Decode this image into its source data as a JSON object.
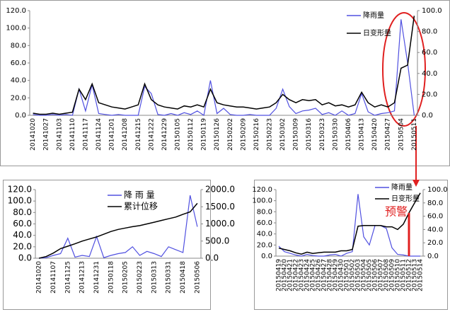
{
  "chart_data": [
    {
      "type": "line",
      "categories": [
        "20141020",
        null,
        "20141027",
        null,
        "20141103",
        null,
        "20141110",
        null,
        "20141117",
        null,
        "20141124",
        null,
        "20141201",
        null,
        "20141208",
        null,
        "20141215",
        null,
        "20141222",
        null,
        "20141229",
        null,
        "20150105",
        null,
        "20150112",
        null,
        "20150119",
        null,
        "20150126",
        null,
        "20150202",
        null,
        "20150209",
        null,
        "20150216",
        null,
        "20150223",
        null,
        "20150302",
        null,
        "20150309",
        null,
        "20150316",
        null,
        "20150323",
        null,
        "20150330",
        null,
        "20150406",
        null,
        "20150413",
        null,
        "20150420",
        null,
        "20150427",
        null,
        "20150504",
        null,
        "20150511"
      ],
      "series": [
        {
          "name": "降雨量",
          "color": "#5050e0",
          "values": [
            1,
            0,
            0,
            1,
            0,
            1,
            0,
            30,
            5,
            35,
            2,
            1,
            0,
            1,
            0,
            0,
            0,
            33,
            25,
            1,
            0,
            2,
            0,
            3,
            1,
            5,
            0,
            40,
            2,
            8,
            1,
            0,
            0,
            1,
            0,
            0,
            0,
            8,
            30,
            10,
            2,
            5,
            6,
            8,
            1,
            3,
            0,
            5,
            0,
            2,
            25,
            4,
            0,
            2,
            3,
            5,
            110,
            60,
            0
          ]
        },
        {
          "name": "日变形量",
          "color": "#000000",
          "axis": "y2",
          "values": [
            2,
            1,
            1,
            2,
            1,
            2,
            3,
            25,
            15,
            30,
            12,
            10,
            8,
            7,
            6,
            8,
            10,
            30,
            15,
            10,
            8,
            7,
            6,
            9,
            8,
            10,
            8,
            25,
            12,
            10,
            9,
            8,
            8,
            7,
            6,
            7,
            8,
            12,
            20,
            15,
            12,
            15,
            14,
            15,
            10,
            12,
            9,
            10,
            8,
            10,
            22,
            12,
            8,
            10,
            8,
            12,
            45,
            48,
            95
          ]
        }
      ],
      "ylim": [
        0,
        120
      ],
      "yticks": [
        {
          "value": 0,
          "label": "0.0"
        },
        {
          "value": 20,
          "label": "20.0"
        },
        {
          "value": 40,
          "label": "40.0"
        },
        {
          "value": 60,
          "label": "60.0"
        },
        {
          "value": 80,
          "label": "80.0"
        },
        {
          "value": 100,
          "label": "100.0"
        },
        {
          "value": 120,
          "label": "120.0"
        }
      ],
      "y2lim": [
        0,
        100
      ],
      "y2ticks": [
        {
          "value": 0,
          "label": "0.0"
        },
        {
          "value": 20,
          "label": "20.0"
        },
        {
          "value": 40,
          "label": "40.0"
        },
        {
          "value": 60,
          "label": "60.0"
        },
        {
          "value": 80,
          "label": "80.0"
        },
        {
          "value": 100,
          "label": "100.0"
        }
      ]
    },
    {
      "type": "line",
      "categories": [
        "20141020",
        null,
        "20141107",
        null,
        "20141125",
        null,
        "20141213",
        null,
        "20141231",
        null,
        "20150118",
        null,
        "20150205",
        null,
        "20150223",
        null,
        "20150313",
        null,
        "20150331",
        null,
        "20150418",
        null,
        "20150506"
      ],
      "series": [
        {
          "name": "降 雨 量",
          "color": "#5050e0",
          "values": [
            0,
            1,
            5,
            8,
            35,
            2,
            5,
            3,
            38,
            1,
            5,
            8,
            10,
            20,
            5,
            12,
            8,
            3,
            20,
            15,
            10,
            110,
            55
          ]
        },
        {
          "name": "累计位移",
          "color": "#000000",
          "axis": "y2",
          "values": [
            0,
            50,
            150,
            280,
            350,
            420,
            500,
            560,
            620,
            700,
            780,
            840,
            880,
            920,
            950,
            1000,
            1050,
            1100,
            1150,
            1200,
            1280,
            1350,
            1600
          ]
        }
      ],
      "ylim": [
        0,
        120
      ],
      "yticks": [
        {
          "value": 0,
          "label": "0.0"
        },
        {
          "value": 20,
          "label": "20.0"
        },
        {
          "value": 40,
          "label": "40.0"
        },
        {
          "value": 60,
          "label": "60.0"
        },
        {
          "value": 80,
          "label": "80.0"
        },
        {
          "value": 100,
          "label": "100.0"
        },
        {
          "value": 120,
          "label": "120.0"
        }
      ],
      "y2lim": [
        0,
        2000
      ],
      "y2ticks": [
        {
          "value": 0,
          "label": "0.0"
        },
        {
          "value": 500,
          "label": "500.0"
        },
        {
          "value": 1000,
          "label": "1000.0"
        },
        {
          "value": 1500,
          "label": "1500.0"
        },
        {
          "value": 2000,
          "label": "2000.0"
        }
      ]
    },
    {
      "type": "line",
      "categories": [
        "20150419",
        "20150420",
        "20150421",
        "20150422",
        "20150423",
        "20150424",
        "20150425",
        "20150426",
        "20150427",
        "20150428",
        "20150429",
        "20150430",
        "20150501",
        "20150502",
        "20150503",
        "20150504",
        "20150505",
        "20150506",
        "20150507",
        "20150508",
        "20150509",
        "20150510",
        "20150511",
        "20150512",
        "20150513",
        "20150514"
      ],
      "series": [
        {
          "name": "降雨量",
          "color": "#5050e0",
          "values": [
            18,
            8,
            5,
            2,
            0,
            3,
            1,
            0,
            0,
            2,
            3,
            0,
            5,
            8,
            112,
            35,
            20,
            55,
            55,
            50,
            15,
            3,
            2,
            0,
            0,
            0
          ]
        },
        {
          "name": "日变形量",
          "color": "#000000",
          "axis": "y2",
          "values": [
            12,
            10,
            8,
            5,
            3,
            6,
            4,
            5,
            6,
            6,
            6,
            8,
            8,
            10,
            45,
            46,
            46,
            46,
            46,
            44,
            44,
            40,
            48,
            65,
            80,
            95
          ]
        }
      ],
      "annotation": "预警",
      "ylim": [
        0,
        120
      ],
      "yticks": [
        {
          "value": 0,
          "label": "0.0"
        },
        {
          "value": 20,
          "label": "20.0"
        },
        {
          "value": 40,
          "label": "40.0"
        },
        {
          "value": 60,
          "label": "60.0"
        },
        {
          "value": 80,
          "label": "80.0"
        },
        {
          "value": 100,
          "label": "100.0"
        },
        {
          "value": 120,
          "label": "120.0"
        }
      ],
      "y2lim": [
        0,
        100
      ],
      "y2ticks": [
        {
          "value": 0,
          "label": "0.0"
        },
        {
          "value": 20,
          "label": "20.0"
        },
        {
          "value": 40,
          "label": "40.0"
        },
        {
          "value": 60,
          "label": "60.0"
        },
        {
          "value": 80,
          "label": "80.0"
        },
        {
          "value": 100,
          "label": "100.0"
        }
      ]
    }
  ]
}
